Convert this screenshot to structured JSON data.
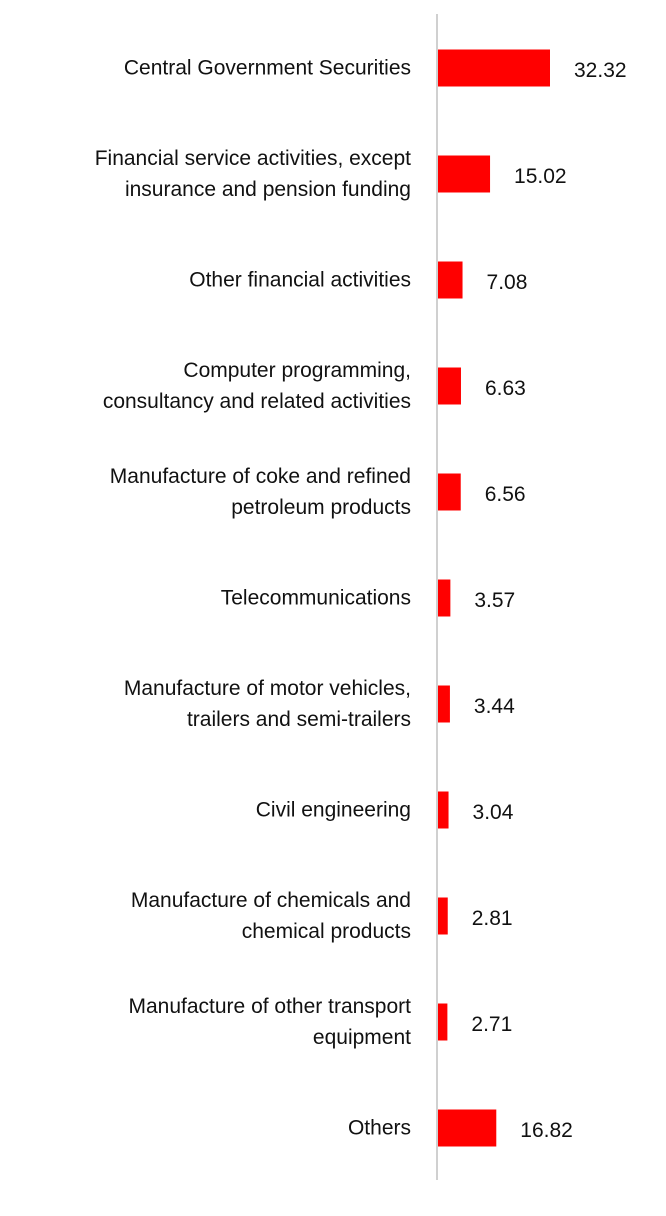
{
  "chart_data": {
    "type": "bar",
    "orientation": "horizontal",
    "categories": [
      "Central Government Securities",
      "Financial service activities, except\ninsurance and pension funding",
      "Other financial activities",
      "Computer programming,\nconsultancy and related activities",
      "Manufacture of coke and refined\npetroleum products",
      "Telecommunications",
      "Manufacture of motor vehicles,\ntrailers and semi-trailers",
      "Civil engineering",
      "Manufacture of chemicals and\nchemical products",
      "Manufacture of other transport\nequipment",
      "Others"
    ],
    "values": [
      32.32,
      15.02,
      7.08,
      6.63,
      6.56,
      3.57,
      3.44,
      3.04,
      2.81,
      2.71,
      16.82
    ],
    "value_labels": [
      "32.32",
      "15.02",
      "7.08",
      "6.63",
      "6.56",
      "3.57",
      "3.44",
      "3.04",
      "2.81",
      "2.71",
      "16.82"
    ],
    "bar_color": "#ff0000",
    "axis_color": "#d0d0d0",
    "grid": false,
    "legend": "none"
  }
}
